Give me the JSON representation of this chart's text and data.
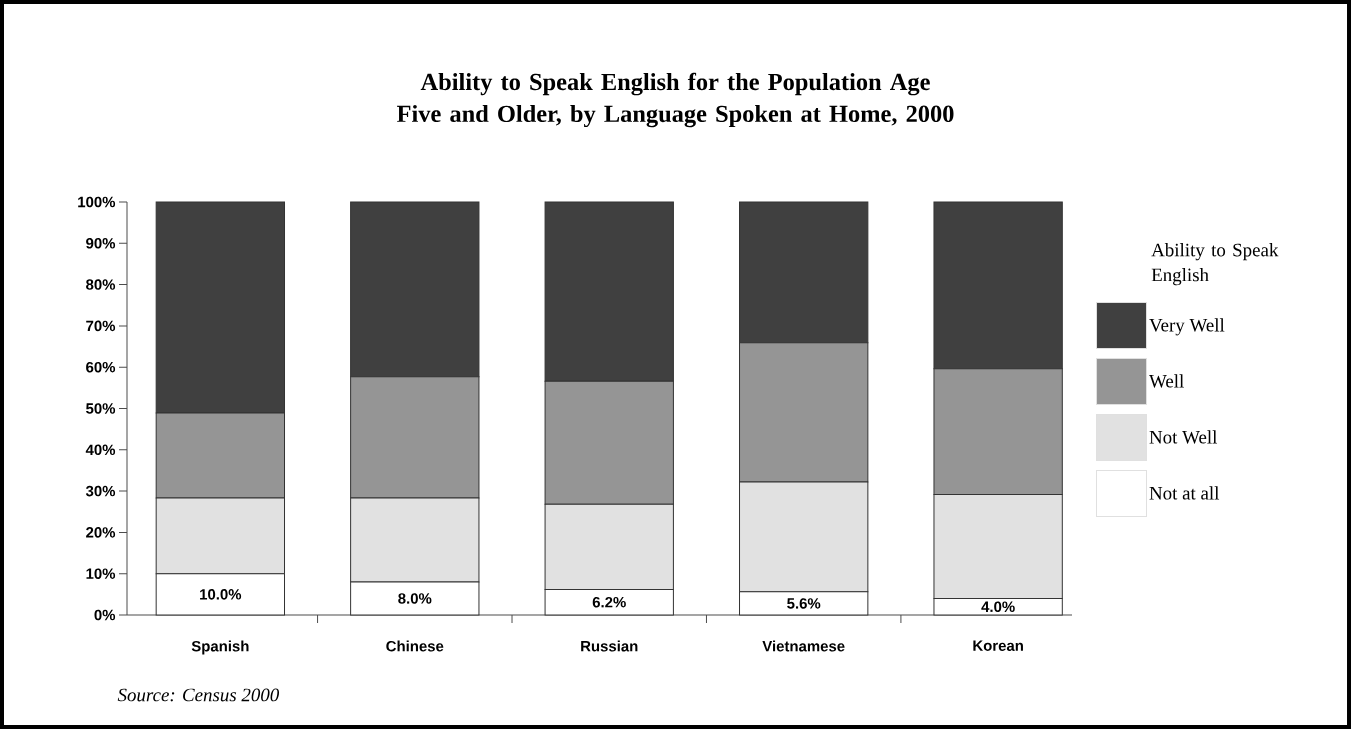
{
  "chart_data": {
    "type": "bar",
    "stacked": true,
    "title": "Ability to Speak English for the Population Age Five and Older, by Language Spoken at Home, 2000",
    "categories": [
      "Spanish",
      "Chinese",
      "Russian",
      "Vietnamese",
      "Korean"
    ],
    "series": [
      {
        "name": "Not at all",
        "color": "#ffffff",
        "values": [
          10.0,
          8.0,
          6.2,
          5.6,
          4.0
        ],
        "value_labels": [
          "10.0%",
          "8.0%",
          "6.2%",
          "5.6%",
          "4.0%"
        ]
      },
      {
        "name": "Not Well",
        "color": "#e1e1e1",
        "values": [
          18.3,
          20.3,
          20.6,
          26.6,
          25.2
        ]
      },
      {
        "name": "Well",
        "color": "#959595",
        "values": [
          20.6,
          29.4,
          29.8,
          33.7,
          30.4
        ]
      },
      {
        "name": "Very Well",
        "color": "#404040",
        "values": [
          51.1,
          42.3,
          43.4,
          34.1,
          40.4
        ]
      }
    ],
    "ylim": [
      0,
      100
    ],
    "yticks": [
      {
        "value": 0,
        "label": "0%"
      },
      {
        "value": 10,
        "label": "10%"
      },
      {
        "value": 20,
        "label": "20%"
      },
      {
        "value": 30,
        "label": "30%"
      },
      {
        "value": 40,
        "label": "40%"
      },
      {
        "value": 50,
        "label": "50%"
      },
      {
        "value": 60,
        "label": "60%"
      },
      {
        "value": 70,
        "label": "70%"
      },
      {
        "value": 80,
        "label": "80%"
      },
      {
        "value": 90,
        "label": "90%"
      },
      {
        "value": 100,
        "label": "100%"
      }
    ],
    "legend": "right",
    "legend_title": "Ability to Speak English",
    "grid": false,
    "annotations": [
      "Source: Census 2000"
    ]
  }
}
